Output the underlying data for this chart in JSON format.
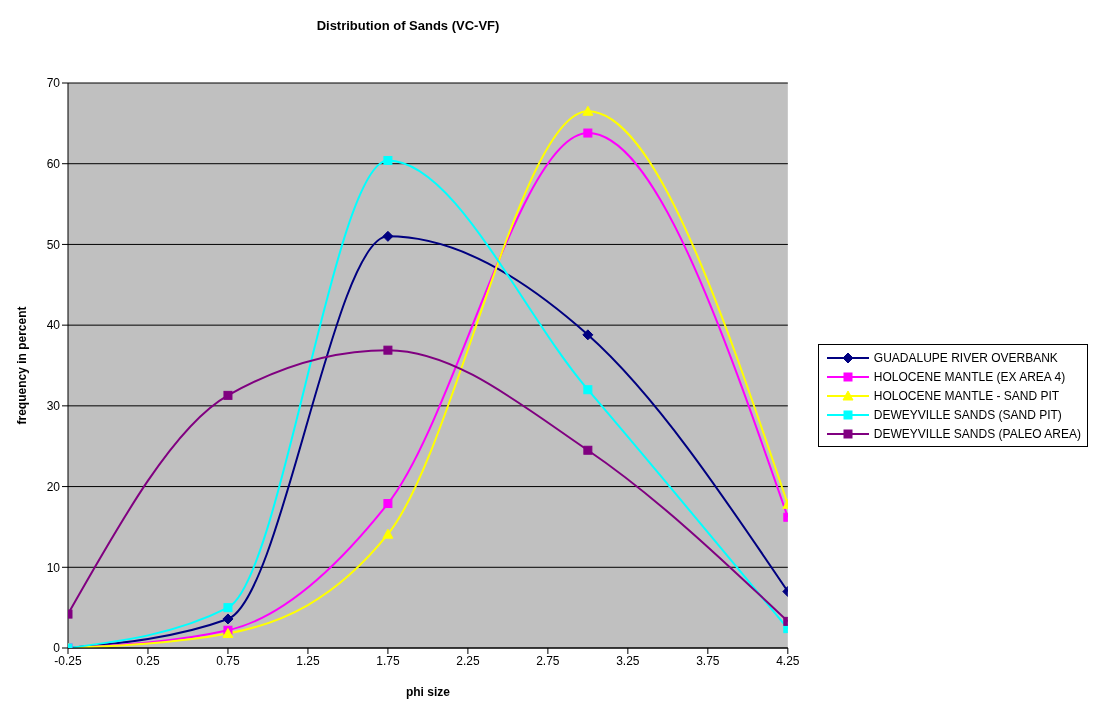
{
  "chart_data": {
    "type": "line",
    "title": "Distribution of Sands (VC-VF)",
    "xlabel": "phi size",
    "ylabel": "frequency in percent",
    "x": [
      -0.25,
      0.75,
      1.75,
      3.0,
      4.25
    ],
    "xlim": [
      -0.25,
      4.25
    ],
    "xticks": [
      -0.25,
      0.25,
      0.75,
      1.25,
      1.75,
      2.25,
      2.75,
      3.25,
      3.75,
      4.25
    ],
    "ylim": [
      0,
      70
    ],
    "yticks": [
      0,
      10,
      20,
      30,
      40,
      50,
      60,
      70
    ],
    "grid": "y",
    "legend": "right",
    "line_style": "solid",
    "series": [
      {
        "name": "GUADALUPE RIVER OVERBANK",
        "color": "#000080",
        "marker": "diamond",
        "values": [
          0,
          3.6,
          51,
          38.8,
          7
        ]
      },
      {
        "name": "HOLOCENE MANTLE (EX AREA 4)",
        "color": "#ff00ff",
        "marker": "square",
        "values": [
          0,
          2.2,
          17.9,
          63.8,
          16.2
        ]
      },
      {
        "name": "HOLOCENE MANTLE - SAND PIT",
        "color": "#ffff00",
        "marker": "triangle",
        "values": [
          0,
          1.8,
          14.1,
          66.5,
          17.8
        ]
      },
      {
        "name": "DEWEYVILLE SANDS (SAND PIT)",
        "color": "#00ffff",
        "marker": "square",
        "values": [
          0,
          5,
          60.4,
          32,
          2.4
        ]
      },
      {
        "name": "DEWEYVILLE SANDS (PALEO AREA)",
        "color": "#800080",
        "marker": "square",
        "values": [
          4.2,
          31.3,
          36.9,
          24.5,
          3.3
        ]
      }
    ]
  }
}
